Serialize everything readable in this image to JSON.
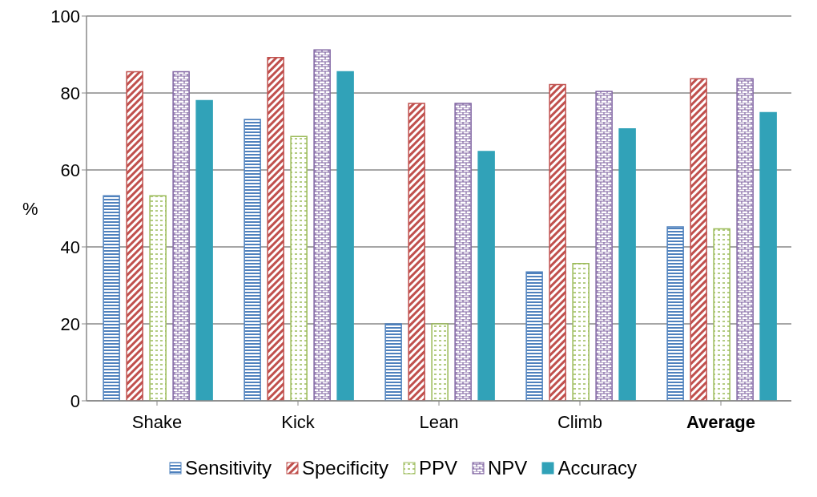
{
  "chart_data": {
    "type": "bar",
    "ylabel": "%",
    "categories": [
      "Shake",
      "Kick",
      "Lean",
      "Climb",
      "Average"
    ],
    "series": [
      {
        "name": "Sensitivity",
        "color": "#4f81bd",
        "values": [
          53.3,
          73.1,
          20,
          33.5,
          45.2
        ]
      },
      {
        "name": "Specificity",
        "color": "#c0504d",
        "values": [
          85.5,
          89.2,
          77.3,
          82.2,
          83.7
        ]
      },
      {
        "name": "PPV",
        "color": "#9bbb59",
        "values": [
          53.3,
          68.7,
          20,
          35.7,
          44.7
        ]
      },
      {
        "name": "NPV",
        "color": "#8064a2",
        "values": [
          85.5,
          91.2,
          77.3,
          80.4,
          83.7
        ]
      },
      {
        "name": "Accuracy",
        "color": "#31a2b8",
        "values": [
          78,
          85.5,
          64.8,
          70.7,
          74.9
        ]
      }
    ],
    "ylim": [
      0,
      100
    ],
    "yticks": [
      0,
      20,
      40,
      60,
      80,
      100
    ],
    "grid": "y",
    "legend": "bottom"
  }
}
